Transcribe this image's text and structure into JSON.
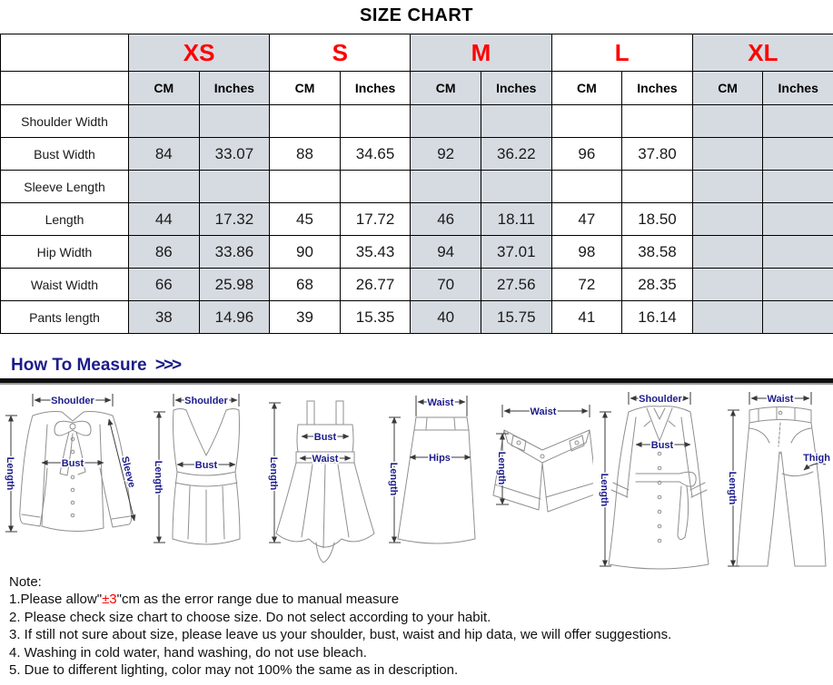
{
  "title": "SIZE CHART",
  "colors": {
    "accent_red": "#ff0000",
    "label_navy": "#1c1c8c",
    "shaded_cell": "#d6dbe1",
    "divider_black": "#101010"
  },
  "table": {
    "sizes": [
      {
        "label": "XS",
        "shaded": true
      },
      {
        "label": "S",
        "shaded": false
      },
      {
        "label": "M",
        "shaded": true
      },
      {
        "label": "L",
        "shaded": false
      },
      {
        "label": "XL",
        "shaded": true
      }
    ],
    "unit_headers": [
      "CM",
      "Inches"
    ],
    "rows": [
      {
        "label": "Shoulder Width",
        "values": [
          "",
          "",
          "",
          "",
          "",
          "",
          "",
          "",
          "",
          ""
        ]
      },
      {
        "label": "Bust Width",
        "values": [
          "84",
          "33.07",
          "88",
          "34.65",
          "92",
          "36.22",
          "96",
          "37.80",
          "",
          ""
        ]
      },
      {
        "label": "Sleeve Length",
        "values": [
          "",
          "",
          "",
          "",
          "",
          "",
          "",
          "",
          "",
          ""
        ]
      },
      {
        "label": "Length",
        "values": [
          "44",
          "17.32",
          "45",
          "17.72",
          "46",
          "18.11",
          "47",
          "18.50",
          "",
          ""
        ]
      },
      {
        "label": "Hip Width",
        "values": [
          "86",
          "33.86",
          "90",
          "35.43",
          "94",
          "37.01",
          "98",
          "38.58",
          "",
          ""
        ]
      },
      {
        "label": "Waist Width",
        "values": [
          "66",
          "25.98",
          "68",
          "26.77",
          "70",
          "27.56",
          "72",
          "28.35",
          "",
          ""
        ]
      },
      {
        "label": "Pants length",
        "values": [
          "38",
          "14.96",
          "39",
          "15.35",
          "40",
          "15.75",
          "41",
          "16.14",
          "",
          ""
        ]
      }
    ]
  },
  "how_to_measure": {
    "heading": "How To Measure",
    "chevrons": ">>>"
  },
  "illustrations": [
    {
      "type": "blouse",
      "labels": {
        "shoulder": "Shoulder",
        "bust": "Bust",
        "sleeve": "Sleeve",
        "length": "Length"
      }
    },
    {
      "type": "tank-top",
      "labels": {
        "shoulder": "Shoulder",
        "bust": "Bust",
        "length": "Length"
      }
    },
    {
      "type": "dress",
      "labels": {
        "bust": "Bust",
        "waist": "Waist",
        "length": "Length"
      }
    },
    {
      "type": "skirt",
      "labels": {
        "waist": "Waist",
        "hips": "Hips",
        "length": "Length"
      }
    },
    {
      "type": "shorts",
      "labels": {
        "waist": "Waist",
        "length": "Length"
      }
    },
    {
      "type": "coat",
      "labels": {
        "shoulder": "Shoulder",
        "bust": "Bust",
        "length": "Length"
      }
    },
    {
      "type": "pants",
      "labels": {
        "waist": "Waist",
        "thigh": "Thigh",
        "length": "Length"
      }
    }
  ],
  "notes": {
    "heading": "Note:",
    "item1": {
      "prefix": "1.Please allow\"",
      "highlight": "±3",
      "suffix": "\"cm as the error range due to manual measure"
    },
    "items_rest": [
      "2. Please check size chart to choose size. Do not select according to your habit.",
      "3. If still not sure about size, please leave us your shoulder, bust, waist and hip data, we will offer suggestions.",
      "4. Washing in cold water, hand washing, do not use bleach.",
      "5. Due to different lighting, color may not 100% the same as in description."
    ]
  }
}
